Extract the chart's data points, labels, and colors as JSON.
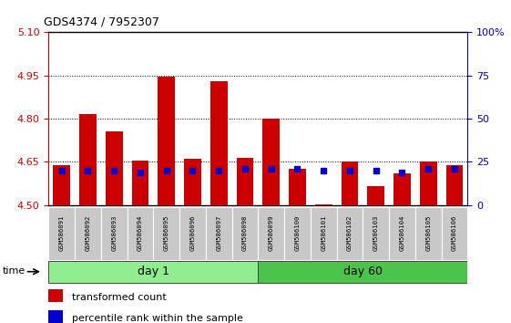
{
  "title": "GDS4374 / 7952307",
  "samples": [
    "GSM586091",
    "GSM586092",
    "GSM586093",
    "GSM586094",
    "GSM586095",
    "GSM586096",
    "GSM586097",
    "GSM586098",
    "GSM586099",
    "GSM586100",
    "GSM586101",
    "GSM586102",
    "GSM586103",
    "GSM586104",
    "GSM586105",
    "GSM586106"
  ],
  "red_values": [
    4.64,
    4.815,
    4.755,
    4.655,
    4.947,
    4.66,
    4.93,
    4.665,
    4.8,
    4.625,
    4.502,
    4.65,
    4.565,
    4.61,
    4.652,
    4.64
  ],
  "blue_percentiles": [
    20,
    20,
    20,
    19,
    20,
    20,
    20,
    21,
    21,
    21,
    20,
    20,
    20,
    19,
    21,
    21
  ],
  "ylim_left": [
    4.5,
    5.1
  ],
  "ylim_right": [
    0,
    100
  ],
  "yticks_left": [
    4.5,
    4.65,
    4.8,
    4.95,
    5.1
  ],
  "yticks_right": [
    0,
    25,
    50,
    75,
    100
  ],
  "gridlines": [
    4.65,
    4.8,
    4.95
  ],
  "groups": [
    {
      "label": "day 1",
      "indices": [
        0,
        1,
        2,
        3,
        4,
        5,
        6,
        7
      ],
      "color": "#90EE90"
    },
    {
      "label": "day 60",
      "indices": [
        8,
        9,
        10,
        11,
        12,
        13,
        14,
        15
      ],
      "color": "#4CC44C"
    }
  ],
  "bar_color_red": "#CC0000",
  "bar_color_blue": "#0000CC",
  "bar_width": 0.65,
  "tick_bg_color": "#C8C8C8",
  "left_tick_color": "#CC0000",
  "right_tick_color": "#0000BB",
  "legend_red_label": "transformed count",
  "legend_blue_label": "percentile rank within the sample",
  "time_label": "time"
}
